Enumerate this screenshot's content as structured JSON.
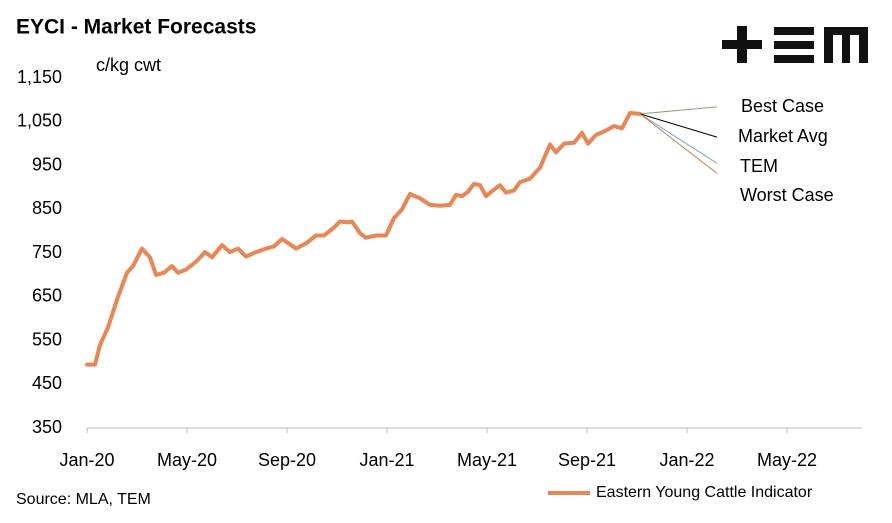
{
  "chart_data": {
    "type": "line",
    "title": "EYCI - Market Forecasts",
    "y_label": "c/kg cwt",
    "source": "Source: MLA, TEM",
    "x": [
      0,
      0.32,
      0.52,
      0.84,
      1.24,
      1.6,
      1.84,
      2.2,
      2.52,
      2.76,
      3.08,
      3.4,
      3.64,
      3.96,
      4.36,
      4.72,
      5.0,
      5.4,
      5.72,
      6.04,
      6.36,
      6.76,
      7.16,
      7.48,
      7.8,
      8.12,
      8.36,
      8.76,
      9.16,
      9.48,
      9.88,
      10.12,
      10.44,
      10.6,
      10.92,
      11.16,
      11.56,
      11.96,
      12.28,
      12.6,
      12.92,
      13.32,
      13.72,
      14.12,
      14.52,
      14.76,
      15.0,
      15.24,
      15.48,
      15.72,
      15.96,
      16.28,
      16.52,
      16.76,
      17.08,
      17.32,
      17.72,
      18.12,
      18.52,
      18.76,
      19.08,
      19.48,
      19.8,
      20.04,
      20.36,
      20.76,
      21.08,
      21.4,
      21.72,
      22.12
    ],
    "series": [
      {
        "name": "Eastern Young Cattle Indicator",
        "color": "#ee8450",
        "values": [
          495,
          495,
          540,
          580,
          650,
          705,
          720,
          760,
          740,
          700,
          705,
          720,
          705,
          712,
          730,
          752,
          740,
          768,
          752,
          760,
          742,
          752,
          760,
          765,
          782,
          770,
          760,
          772,
          790,
          790,
          808,
          822,
          820,
          822,
          795,
          785,
          790,
          790,
          830,
          850,
          885,
          875,
          860,
          858,
          860,
          883,
          880,
          890,
          908,
          905,
          880,
          895,
          905,
          888,
          893,
          912,
          920,
          945,
          998,
          980,
          1000,
          1002,
          1025,
          1000,
          1020,
          1030,
          1040,
          1035,
          1070,
          1068
        ]
      }
    ],
    "forecasts": [
      {
        "name": "Best Case",
        "color": "#7fa860",
        "x": [
          22.12,
          25.2
        ],
        "values": [
          1068,
          1084
        ]
      },
      {
        "name": "Market Avg",
        "color": "#000000",
        "x": [
          22.12,
          25.2
        ],
        "values": [
          1068,
          1015
        ]
      },
      {
        "name": "TEM",
        "color": "#6fa8dc",
        "x": [
          22.12,
          25.2
        ],
        "values": [
          1068,
          955
        ]
      },
      {
        "name": "Worst Case",
        "color": "#e07b39",
        "x": [
          22.12,
          25.2
        ],
        "values": [
          1068,
          932
        ]
      }
    ],
    "xlim": [
      0,
      31
    ],
    "xticks": [
      {
        "value": 0,
        "label": "Jan-20"
      },
      {
        "value": 4,
        "label": "May-20"
      },
      {
        "value": 8,
        "label": "Sep-20"
      },
      {
        "value": 12,
        "label": "Jan-21"
      },
      {
        "value": 16,
        "label": "May-21"
      },
      {
        "value": 20,
        "label": "Sep-21"
      },
      {
        "value": 24,
        "label": "Jan-22"
      },
      {
        "value": 28,
        "label": "May-22"
      }
    ],
    "ylim": [
      350,
      1150
    ],
    "yticks": [
      350,
      450,
      550,
      650,
      750,
      850,
      950,
      {
        "value": 1050,
        "label": "1,050"
      },
      {
        "value": 1150,
        "label": "1,150"
      }
    ],
    "grid": false
  }
}
